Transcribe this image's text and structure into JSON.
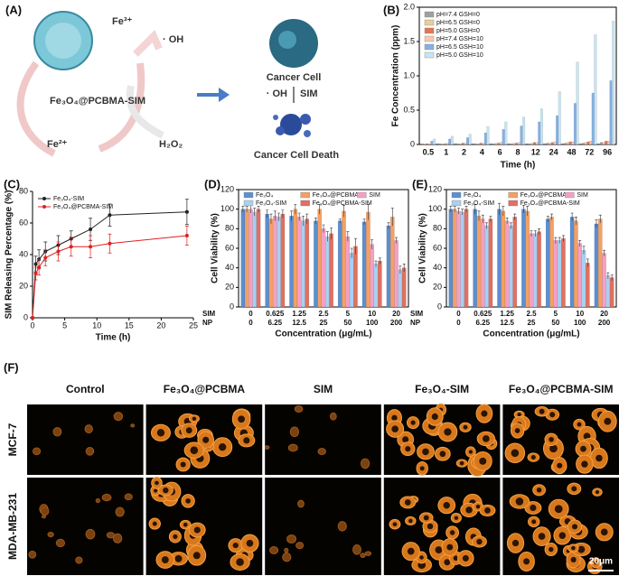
{
  "panel_labels": [
    "(A)",
    "(B)",
    "(C)",
    "(D)",
    "(E)",
    "(F)"
  ],
  "schematic": {
    "fe3": "Fe³⁺",
    "oh1": "· OH",
    "np": "Fe₃O₄@PCBMA-SIM",
    "fe2": "Fe²⁺",
    "h2o2": "H₂O₂",
    "cell": "Cancer Cell",
    "oh2": "· OH",
    "sim": "SIM",
    "death": "Cancer Cell Death"
  },
  "chart_data": [
    {
      "type": "bar",
      "xlabel": "Time (h)",
      "ylabel": "Fe Concentration (ppm)",
      "categories": [
        "0.5",
        "1",
        "2",
        "4",
        "6",
        "8",
        "12",
        "24",
        "48",
        "72",
        "96"
      ],
      "ylim": [
        0,
        2
      ],
      "yticks": [
        0,
        0.5,
        {
          "value": 1,
          "label": "1.0"
        },
        1.5,
        {
          "value": 2,
          "label": "2.0"
        }
      ],
      "legend": "upper left",
      "series": [
        {
          "name": "pH=7.4 GSH=0",
          "color": "#a0a0a0",
          "values": [
            0.01,
            0.01,
            0.01,
            0.01,
            0.01,
            0.01,
            0.01,
            0.02,
            0.02,
            0.02,
            0.03
          ]
        },
        {
          "name": "pH=6.5 GSH=0",
          "color": "#e6cf9c",
          "values": [
            0.01,
            0.01,
            0.01,
            0.01,
            0.02,
            0.02,
            0.02,
            0.02,
            0.03,
            0.03,
            0.03
          ]
        },
        {
          "name": "pH=5.0 GSH=0",
          "color": "#e8734f",
          "values": [
            0.01,
            0.01,
            0.02,
            0.02,
            0.02,
            0.02,
            0.03,
            0.03,
            0.04,
            0.04,
            0.05
          ]
        },
        {
          "name": "pH=7.4 GSH=10",
          "color": "#f8c8b0",
          "values": [
            0.01,
            0.02,
            0.02,
            0.02,
            0.03,
            0.03,
            0.03,
            0.04,
            0.04,
            0.05,
            0.05
          ]
        },
        {
          "name": "pH=6.5 GSH=10",
          "color": "#86b0e4",
          "values": [
            0.05,
            0.08,
            0.1,
            0.17,
            0.22,
            0.27,
            0.33,
            0.42,
            0.6,
            0.75,
            0.93
          ]
        },
        {
          "name": "pH=5.0 GSH=10",
          "color": "#c6e4f2",
          "values": [
            0.08,
            0.12,
            0.15,
            0.26,
            0.33,
            0.4,
            0.52,
            0.77,
            1.2,
            1.6,
            1.8
          ]
        }
      ]
    },
    {
      "type": "line",
      "xlabel": "Time (h)",
      "ylabel": "SIM Releasing Percentage (%)",
      "x": [
        0,
        0.5,
        1,
        2,
        4,
        6,
        9,
        12,
        24
      ],
      "xlim": [
        0,
        25
      ],
      "xticks": [
        0,
        5,
        10,
        15,
        20,
        25
      ],
      "ylim": [
        0,
        80
      ],
      "yticks": [
        0,
        20,
        40,
        60,
        80
      ],
      "legend": "upper left",
      "series": [
        {
          "name": "Fe₃O₄-SIM",
          "color": "#222222",
          "values": [
            0,
            34,
            37,
            42,
            46,
            50,
            56,
            65,
            67
          ],
          "errors": [
            0,
            5,
            6,
            6,
            6,
            5,
            7,
            7,
            8
          ]
        },
        {
          "name": "Fe₃O₄@PCBMA-SIM",
          "color": "#e02020",
          "values": [
            0,
            28,
            32,
            38,
            42,
            45,
            45,
            47,
            52
          ],
          "errors": [
            0,
            4,
            5,
            5,
            6,
            6,
            7,
            6,
            6
          ]
        }
      ]
    },
    {
      "type": "bar",
      "xlabel": "Concentration (μg/mL)",
      "ylabel": "Cell Viability (%)",
      "category_rows": [
        {
          "label": "SIM",
          "categories": [
            "0",
            "0.625",
            "1.25",
            "2.5",
            "5",
            "10",
            "20"
          ]
        },
        {
          "label": "NP",
          "categories": [
            "0",
            "6.25",
            "12.5",
            "25",
            "50",
            "100",
            "200"
          ]
        }
      ],
      "ylim": [
        0,
        120
      ],
      "yticks": [
        0,
        20,
        40,
        60,
        80,
        100,
        120
      ],
      "legend": "upper center",
      "series": [
        {
          "name": "Fe₃O₄",
          "color": "#5b8fd0",
          "values": [
            100,
            95,
            93,
            88,
            88,
            87,
            83
          ],
          "errors": [
            3,
            4,
            5,
            3,
            2,
            3,
            3
          ]
        },
        {
          "name": "Fe₃O₄@PCBMA",
          "color": "#f4a064",
          "values": [
            100,
            90,
            100,
            100,
            98,
            97,
            92
          ],
          "errors": [
            3,
            5,
            5,
            5,
            6,
            8,
            9
          ]
        },
        {
          "name": "SIM",
          "color": "#f4a0c4",
          "values": [
            100,
            93,
            92,
            80,
            72,
            64,
            68
          ],
          "errors": [
            4,
            5,
            4,
            4,
            5,
            5,
            3
          ]
        },
        {
          "name": "Fe₃O₄-SIM",
          "color": "#a8d0f2",
          "values": [
            97,
            92,
            88,
            72,
            55,
            44,
            38
          ],
          "errors": [
            4,
            4,
            5,
            5,
            5,
            3,
            4
          ]
        },
        {
          "name": "Fe₃O₄@PCBMA-SIM",
          "color": "#e07060",
          "values": [
            100,
            95,
            90,
            75,
            62,
            47,
            40
          ],
          "errors": [
            3,
            4,
            5,
            6,
            8,
            3,
            4
          ]
        }
      ]
    },
    {
      "type": "bar",
      "xlabel": "Concentration (μg/mL)",
      "ylabel": "Cell Viability (%)",
      "category_rows": [
        {
          "label": "SIM",
          "categories": [
            "0",
            "0.625",
            "1.25",
            "2.5",
            "5",
            "10",
            "20"
          ]
        },
        {
          "label": "NP",
          "categories": [
            "0",
            "6.25",
            "12.5",
            "25",
            "50",
            "100",
            "200"
          ]
        }
      ],
      "ylim": [
        0,
        120
      ],
      "yticks": [
        0,
        20,
        40,
        60,
        80,
        100,
        120
      ],
      "legend": "upper center",
      "series": [
        {
          "name": "Fe₃O₄",
          "color": "#5b8fd0",
          "values": [
            100,
            100,
            100,
            100,
            90,
            92,
            85
          ],
          "errors": [
            3,
            5,
            6,
            4,
            3,
            4,
            4
          ]
        },
        {
          "name": "Fe₃O₄@PCBMA",
          "color": "#f4a064",
          "values": [
            100,
            93,
            98,
            98,
            92,
            88,
            90
          ],
          "errors": [
            3,
            5,
            5,
            5,
            3,
            4,
            4
          ]
        },
        {
          "name": "SIM",
          "color": "#f4a0c4",
          "values": [
            98,
            90,
            88,
            75,
            68,
            65,
            55
          ],
          "errors": [
            3,
            4,
            3,
            3,
            3,
            3,
            3
          ]
        },
        {
          "name": "Fe₃O₄-SIM",
          "color": "#a8d0f2",
          "values": [
            97,
            83,
            83,
            75,
            68,
            58,
            32
          ],
          "errors": [
            3,
            3,
            3,
            3,
            3,
            4,
            3
          ]
        },
        {
          "name": "Fe₃O₄@PCBMA-SIM",
          "color": "#e07060",
          "values": [
            100,
            90,
            92,
            77,
            70,
            45,
            30
          ],
          "errors": [
            3,
            3,
            3,
            3,
            3,
            4,
            3
          ]
        }
      ]
    }
  ],
  "microscopy": {
    "columns": [
      "Control",
      "Fe₃O₄@PCBMA",
      "SIM",
      "Fe₃O₄-SIM",
      "Fe₃O₄@PCBMA-SIM"
    ],
    "rows": [
      "MCF-7",
      "MDA-MB-231"
    ],
    "scale_bar": "20μm"
  }
}
